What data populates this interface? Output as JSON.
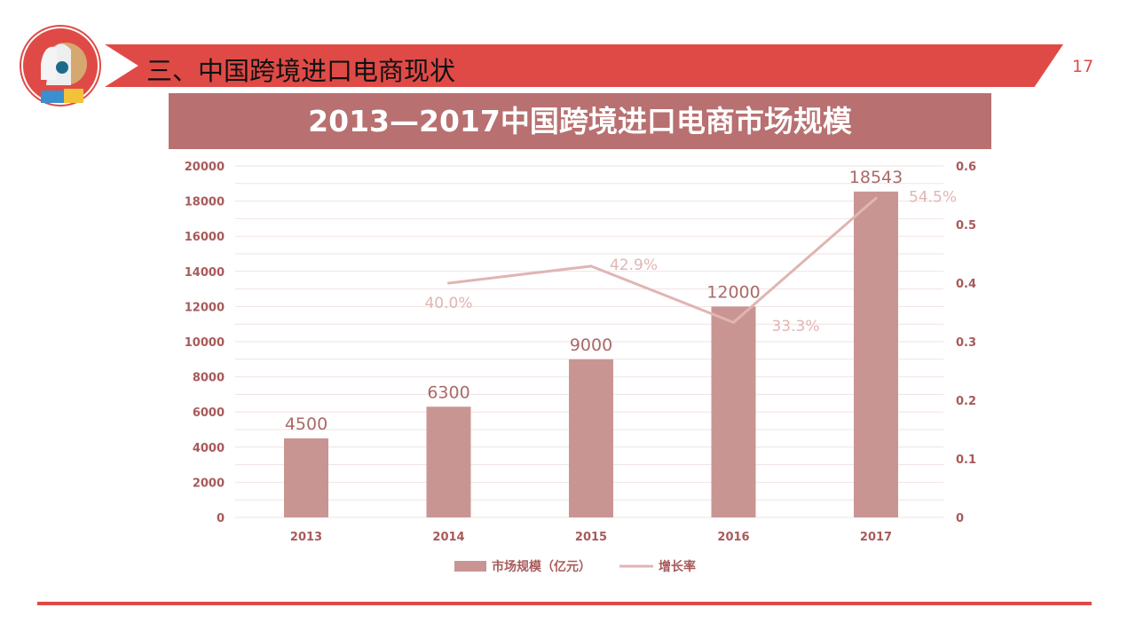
{
  "slide": {
    "title": "三、中国跨境进口电商现状",
    "page_number": "17"
  },
  "chart_data": {
    "type": "bar",
    "title": "2013—2017中国跨境进口电商市场规模",
    "categories": [
      "2013",
      "2014",
      "2015",
      "2016",
      "2017"
    ],
    "series": [
      {
        "name": "市场规模（亿元）",
        "type": "bar",
        "axis": "left",
        "values": [
          4500,
          6300,
          9000,
          12000,
          18543
        ],
        "labels": [
          "4500",
          "6300",
          "9000",
          "12000",
          "18543"
        ]
      },
      {
        "name": "增长率",
        "type": "line",
        "axis": "right",
        "values": [
          null,
          0.4,
          0.429,
          0.333,
          0.545
        ],
        "labels": [
          "",
          "40.0%",
          "42.9%",
          "33.3%",
          "54.5%"
        ]
      }
    ],
    "ylim": [
      0,
      20000
    ],
    "yticks": [
      0,
      2000,
      4000,
      6000,
      8000,
      10000,
      12000,
      14000,
      16000,
      18000,
      20000
    ],
    "y2lim": [
      0,
      0.6
    ],
    "y2ticks": [
      "0",
      "0.1",
      "0.2",
      "0.3",
      "0.4",
      "0.5",
      "0.6"
    ],
    "grid": true,
    "legend": "bottom",
    "colors": {
      "bar": "#c99593",
      "line": "#e0b5b3",
      "text": "#a85a5a"
    }
  }
}
